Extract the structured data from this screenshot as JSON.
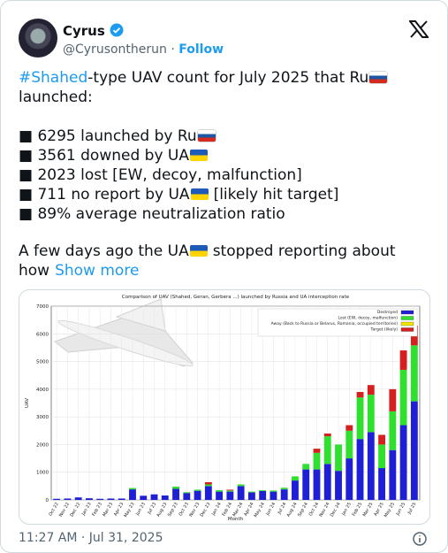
{
  "tweet": {
    "author": {
      "name": "Cyrus",
      "handle": "@Cyrusontherun",
      "separator": "·",
      "follow": "Follow"
    },
    "text": {
      "hashtag": "#Shahed",
      "line1_rest": "-type UAV count for July 2025 that Ru",
      "line2": "launched:",
      "bullets": [
        "■ 6295 launched by Ru",
        "■ 3561 downed by UA",
        "■ 2023 lost [EW, decoy, malfunction]",
        "■ 711 no report by UA",
        "■ 89% average neutralization ratio"
      ],
      "bullet4_rest": "[likely hit target]",
      "para_start": "A few days ago the UA",
      "para_rest": "stopped reporting about",
      "para_line2": "how",
      "show_more": "Show more"
    },
    "timestamp": "11:27 AM · Jul 31, 2025"
  },
  "chart_data": {
    "type": "bar",
    "title": "Comparison of UAV (Shahed, Geran, Gerbera ...) launched by Russia and UA interception rate",
    "y_label": "UAV",
    "x_label": "Month",
    "stacked": true,
    "grid": true,
    "legend": "upper right",
    "categories": [
      "Oct 22",
      "Nov 22",
      "Dec 22",
      "Jan 23",
      "Feb 23",
      "Mar 23",
      "Apr 23",
      "May 23",
      "Jun 23",
      "Jul 23",
      "Aug 23",
      "Sep 23",
      "Oct 23",
      "Nov 23",
      "Dec 23",
      "Jan 24",
      "Feb 24",
      "Mar 24",
      "Apr 24",
      "May 24",
      "Jun 24",
      "Jul 24",
      "Aug 24",
      "Sep 24",
      "Oct 24",
      "Nov 24",
      "Dec 24",
      "Jan 25",
      "Feb 25",
      "Mar 25",
      "Apr 25",
      "May 25",
      "Jun 25",
      "Jul 25"
    ],
    "series": [
      {
        "name": "Destroyed",
        "color": "#1f1fd6",
        "values": [
          40,
          50,
          90,
          60,
          40,
          50,
          50,
          380,
          150,
          200,
          160,
          400,
          250,
          330,
          500,
          300,
          300,
          500,
          270,
          320,
          300,
          380,
          700,
          1100,
          1100,
          1300,
          1050,
          1500,
          2200,
          2450,
          1150,
          1800,
          2700,
          3561
        ]
      },
      {
        "name": "Lost (EW, decoy, malfunction)",
        "color": "#2fe02f",
        "values": [
          0,
          0,
          0,
          0,
          0,
          0,
          0,
          50,
          0,
          0,
          0,
          80,
          30,
          40,
          60,
          50,
          40,
          60,
          30,
          30,
          40,
          60,
          150,
          200,
          600,
          1000,
          950,
          1000,
          1500,
          1350,
          850,
          1400,
          2000,
          2023
        ]
      },
      {
        "name": "Away (Back to Russia or Belarus, Romania, occupied territories)",
        "color": "#f2e600",
        "values": [
          0,
          0,
          0,
          0,
          0,
          0,
          0,
          0,
          0,
          0,
          0,
          0,
          0,
          0,
          0,
          0,
          0,
          0,
          0,
          0,
          0,
          0,
          0,
          0,
          0,
          0,
          0,
          0,
          0,
          0,
          0,
          0,
          0,
          0
        ]
      },
      {
        "name": "Target (likely)",
        "color": "#d62020",
        "values": [
          0,
          0,
          0,
          0,
          0,
          0,
          0,
          0,
          0,
          0,
          0,
          0,
          0,
          0,
          80,
          0,
          30,
          0,
          0,
          0,
          0,
          0,
          0,
          0,
          150,
          100,
          0,
          200,
          200,
          350,
          350,
          800,
          700,
          711
        ]
      }
    ],
    "ylim": [
      0,
      7000
    ],
    "yticks": [
      0,
      1000,
      2000,
      3000,
      4000,
      5000,
      6000,
      7000
    ]
  }
}
